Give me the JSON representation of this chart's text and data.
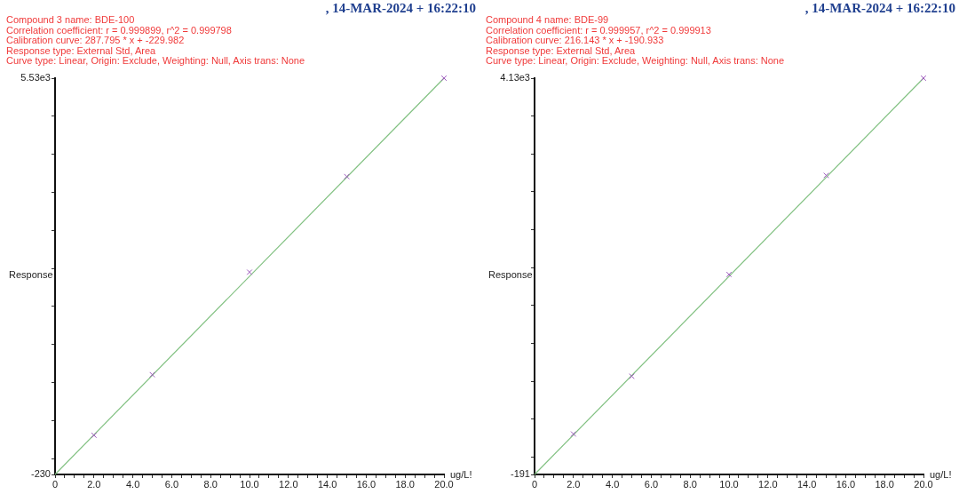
{
  "chart_data": [
    {
      "type": "scatter",
      "title": ", 14-MAR-2024 + 16:22:10",
      "annotations": [
        "Compound 3 name: BDE-100",
        "Correlation coefficient: r = 0.999899, r^2 = 0.999798",
        "Calibration curve: 287.795 * x + -229.982",
        "Response type: External Std, Area",
        "Curve type: Linear, Origin: Exclude, Weighting: Null, Axis trans: None"
      ],
      "xlabel": "ug/L!",
      "ylabel": "Response",
      "marker": "cross",
      "xlim": [
        0,
        20
      ],
      "ylim": [
        -230,
        5530
      ],
      "xticks": [
        0,
        {
          "value": 0.5,
          "label": null
        },
        {
          "value": 1,
          "label": null
        },
        {
          "value": 1.5,
          "label": null
        },
        {
          "value": 2,
          "label": "2.0"
        },
        {
          "value": 2.5,
          "label": null
        },
        {
          "value": 3,
          "label": null
        },
        {
          "value": 3.5,
          "label": null
        },
        {
          "value": 4,
          "label": "4.0"
        },
        {
          "value": 4.5,
          "label": null
        },
        {
          "value": 5,
          "label": null
        },
        {
          "value": 5.5,
          "label": null
        },
        {
          "value": 6,
          "label": "6.0"
        },
        {
          "value": 6.5,
          "label": null
        },
        {
          "value": 7,
          "label": null
        },
        {
          "value": 7.5,
          "label": null
        },
        {
          "value": 8,
          "label": "8.0"
        },
        {
          "value": 8.5,
          "label": null
        },
        {
          "value": 9,
          "label": null
        },
        {
          "value": 9.5,
          "label": null
        },
        {
          "value": 10,
          "label": "10.0"
        },
        {
          "value": 10.5,
          "label": null
        },
        {
          "value": 11,
          "label": null
        },
        {
          "value": 11.5,
          "label": null
        },
        {
          "value": 12,
          "label": "12.0"
        },
        {
          "value": 12.5,
          "label": null
        },
        {
          "value": 13,
          "label": null
        },
        {
          "value": 13.5,
          "label": null
        },
        {
          "value": 14,
          "label": "14.0"
        },
        {
          "value": 14.5,
          "label": null
        },
        {
          "value": 15,
          "label": null
        },
        {
          "value": 15.5,
          "label": null
        },
        {
          "value": 16,
          "label": "16.0"
        },
        {
          "value": 16.5,
          "label": null
        },
        {
          "value": 17,
          "label": null
        },
        {
          "value": 17.5,
          "label": null
        },
        {
          "value": 18,
          "label": "18.0"
        },
        {
          "value": 18.5,
          "label": null
        },
        {
          "value": 19,
          "label": null
        },
        {
          "value": 19.5,
          "label": null
        },
        {
          "value": 20,
          "label": "20.0"
        }
      ],
      "yticks": [
        -230,
        {
          "value": 0,
          "label": null
        },
        {
          "value": 553,
          "label": null
        },
        {
          "value": 1106,
          "label": null
        },
        {
          "value": 1659,
          "label": null
        },
        {
          "value": 2212,
          "label": null
        },
        {
          "value": 2765,
          "label": null
        },
        {
          "value": 3318,
          "label": null
        },
        {
          "value": 3871,
          "label": null
        },
        {
          "value": 4424,
          "label": null
        },
        {
          "value": 4977,
          "label": null
        },
        {
          "value": 5530,
          "label": "5.53e3"
        }
      ],
      "series": [
        {
          "type": "scatter",
          "color": "#a05cc0",
          "x": [
            2,
            5,
            10,
            15,
            20
          ],
          "values": [
            340,
            1220,
            2710,
            4100,
            5530
          ]
        },
        {
          "type": "line",
          "color": "#80c080",
          "marker": "none",
          "x": [
            0,
            20
          ],
          "values": [
            -230,
            5530
          ]
        }
      ]
    },
    {
      "type": "scatter",
      "title": ", 14-MAR-2024 + 16:22:10",
      "annotations": [
        "Compound 4 name: BDE-99",
        "Correlation coefficient: r = 0.999957, r^2 = 0.999913",
        "Calibration curve: 216.143 * x + -190.933",
        "Response type: External Std, Area",
        "Curve type: Linear, Origin: Exclude, Weighting: Null, Axis trans: None"
      ],
      "xlabel": "ug/L!",
      "ylabel": "Response",
      "marker": "cross",
      "xlim": [
        0,
        20
      ],
      "ylim": [
        -191,
        4130
      ],
      "xticks": [
        0,
        {
          "value": 0.5,
          "label": null
        },
        {
          "value": 1,
          "label": null
        },
        {
          "value": 1.5,
          "label": null
        },
        {
          "value": 2,
          "label": "2.0"
        },
        {
          "value": 2.5,
          "label": null
        },
        {
          "value": 3,
          "label": null
        },
        {
          "value": 3.5,
          "label": null
        },
        {
          "value": 4,
          "label": "4.0"
        },
        {
          "value": 4.5,
          "label": null
        },
        {
          "value": 5,
          "label": null
        },
        {
          "value": 5.5,
          "label": null
        },
        {
          "value": 6,
          "label": "6.0"
        },
        {
          "value": 6.5,
          "label": null
        },
        {
          "value": 7,
          "label": null
        },
        {
          "value": 7.5,
          "label": null
        },
        {
          "value": 8,
          "label": "8.0"
        },
        {
          "value": 8.5,
          "label": null
        },
        {
          "value": 9,
          "label": null
        },
        {
          "value": 9.5,
          "label": null
        },
        {
          "value": 10,
          "label": "10.0"
        },
        {
          "value": 10.5,
          "label": null
        },
        {
          "value": 11,
          "label": null
        },
        {
          "value": 11.5,
          "label": null
        },
        {
          "value": 12,
          "label": "12.0"
        },
        {
          "value": 12.5,
          "label": null
        },
        {
          "value": 13,
          "label": null
        },
        {
          "value": 13.5,
          "label": null
        },
        {
          "value": 14,
          "label": "14.0"
        },
        {
          "value": 14.5,
          "label": null
        },
        {
          "value": 15,
          "label": null
        },
        {
          "value": 15.5,
          "label": null
        },
        {
          "value": 16,
          "label": "16.0"
        },
        {
          "value": 16.5,
          "label": null
        },
        {
          "value": 17,
          "label": null
        },
        {
          "value": 17.5,
          "label": null
        },
        {
          "value": 18,
          "label": "18.0"
        },
        {
          "value": 18.5,
          "label": null
        },
        {
          "value": 19,
          "label": null
        },
        {
          "value": 19.5,
          "label": null
        },
        {
          "value": 20,
          "label": "20.0"
        }
      ],
      "yticks": [
        -191,
        {
          "value": 0,
          "label": null
        },
        {
          "value": 413,
          "label": null
        },
        {
          "value": 826,
          "label": null
        },
        {
          "value": 1239,
          "label": null
        },
        {
          "value": 1652,
          "label": null
        },
        {
          "value": 2065,
          "label": null
        },
        {
          "value": 2478,
          "label": null
        },
        {
          "value": 2891,
          "label": null
        },
        {
          "value": 3304,
          "label": null
        },
        {
          "value": 3717,
          "label": null
        },
        {
          "value": 4130,
          "label": "4.13e3"
        }
      ],
      "series": [
        {
          "type": "scatter",
          "color": "#a05cc0",
          "x": [
            2,
            5,
            10,
            15,
            20
          ],
          "values": [
            250,
            880,
            1990,
            3070,
            4130
          ]
        },
        {
          "type": "line",
          "color": "#80c080",
          "marker": "none",
          "x": [
            0,
            20
          ],
          "values": [
            -191,
            4130
          ]
        }
      ]
    }
  ]
}
